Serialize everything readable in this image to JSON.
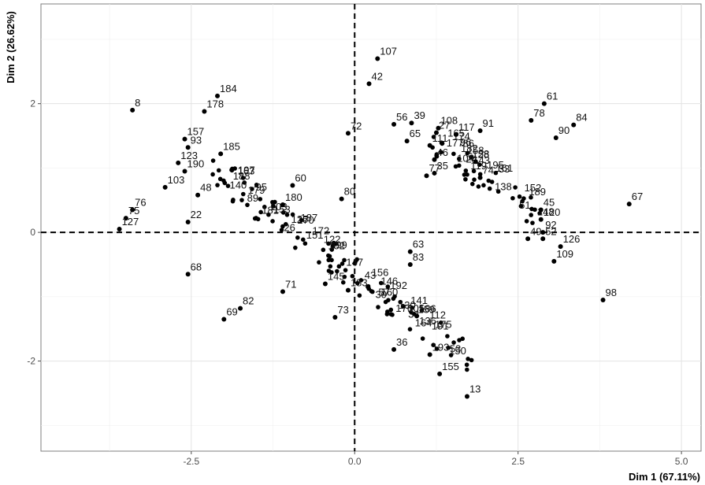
{
  "chart_data": {
    "type": "scatter",
    "xlabel": "Dim 1 (67.11%)",
    "ylabel": "Dim 2 (26.62%)",
    "xlim": [
      -4.8,
      5.3
    ],
    "ylim": [
      -3.4,
      3.55
    ],
    "x_ticks": [
      -2.5,
      0.0,
      2.5,
      5.0
    ],
    "x_tick_labels": [
      "-2.5",
      "0.0",
      "2.5",
      "5.0"
    ],
    "y_ticks": [
      -2,
      0,
      2
    ],
    "y_tick_labels": [
      "-2",
      "0",
      "2"
    ],
    "grid": true,
    "reference_lines": [
      "x=0 dashed",
      "y=0 dashed"
    ],
    "points": [
      {
        "id": "107",
        "x": 0.35,
        "y": 2.7
      },
      {
        "id": "42",
        "x": 0.22,
        "y": 2.31
      },
      {
        "id": "61",
        "x": 2.9,
        "y": 2.0
      },
      {
        "id": "84",
        "x": 3.35,
        "y": 1.67
      },
      {
        "id": "78",
        "x": 2.7,
        "y": 1.74
      },
      {
        "id": "90",
        "x": 3.08,
        "y": 1.47
      },
      {
        "id": "8",
        "x": -3.4,
        "y": 1.9
      },
      {
        "id": "184",
        "x": -2.1,
        "y": 2.12
      },
      {
        "id": "178",
        "x": -2.3,
        "y": 1.88
      },
      {
        "id": "72",
        "x": -0.1,
        "y": 1.54
      },
      {
        "id": "56",
        "x": 0.6,
        "y": 1.68
      },
      {
        "id": "39",
        "x": 0.87,
        "y": 1.7
      },
      {
        "id": "65",
        "x": 0.8,
        "y": 1.42
      },
      {
        "id": "108",
        "x": 1.28,
        "y": 1.62
      },
      {
        "id": "27",
        "x": 1.25,
        "y": 1.55
      },
      {
        "id": "117",
        "x": 1.55,
        "y": 1.52
      },
      {
        "id": "91",
        "x": 1.92,
        "y": 1.58
      },
      {
        "id": "111",
        "x": 1.15,
        "y": 1.35
      },
      {
        "id": "46",
        "x": 1.22,
        "y": 1.13
      },
      {
        "id": "77",
        "x": 1.1,
        "y": 0.88
      },
      {
        "id": "35",
        "x": 1.22,
        "y": 0.92
      },
      {
        "id": "58",
        "x": 1.85,
        "y": 1.1
      },
      {
        "id": "74",
        "x": 1.92,
        "y": 0.85
      },
      {
        "id": "157",
        "x": -2.6,
        "y": 1.45
      },
      {
        "id": "93",
        "x": -2.55,
        "y": 1.32
      },
      {
        "id": "185",
        "x": -2.05,
        "y": 1.22
      },
      {
        "id": "123",
        "x": -2.7,
        "y": 1.08
      },
      {
        "id": "190",
        "x": -2.6,
        "y": 0.95
      },
      {
        "id": "103",
        "x": -2.9,
        "y": 0.7
      },
      {
        "id": "60",
        "x": -0.95,
        "y": 0.73
      },
      {
        "id": "80",
        "x": -0.2,
        "y": 0.52
      },
      {
        "id": "76",
        "x": -3.4,
        "y": 0.35
      },
      {
        "id": "75",
        "x": -3.5,
        "y": 0.22
      },
      {
        "id": "127",
        "x": -3.6,
        "y": 0.05
      },
      {
        "id": "22",
        "x": -2.55,
        "y": 0.16
      },
      {
        "id": "48",
        "x": -2.4,
        "y": 0.58
      },
      {
        "id": "180",
        "x": -1.1,
        "y": 0.43
      },
      {
        "id": "67",
        "x": 4.2,
        "y": 0.44
      },
      {
        "id": "45",
        "x": 2.85,
        "y": 0.35
      },
      {
        "id": "120",
        "x": 2.85,
        "y": 0.2
      },
      {
        "id": "92",
        "x": 2.88,
        "y": 0.0
      },
      {
        "id": "49",
        "x": 2.65,
        "y": -0.1
      },
      {
        "id": "52",
        "x": 2.88,
        "y": -0.1
      },
      {
        "id": "126",
        "x": 3.15,
        "y": -0.22
      },
      {
        "id": "109",
        "x": 3.05,
        "y": -0.45
      },
      {
        "id": "63",
        "x": 0.85,
        "y": -0.3
      },
      {
        "id": "83",
        "x": 0.85,
        "y": -0.5
      },
      {
        "id": "68",
        "x": -2.55,
        "y": -0.65
      },
      {
        "id": "98",
        "x": 3.8,
        "y": -1.05
      },
      {
        "id": "82",
        "x": -1.75,
        "y": -1.18
      },
      {
        "id": "69",
        "x": -2.0,
        "y": -1.35
      },
      {
        "id": "73",
        "x": -0.3,
        "y": -1.32
      },
      {
        "id": "183",
        "x": -0.1,
        "y": -0.9
      },
      {
        "id": "186",
        "x": 0.95,
        "y": -1.3
      },
      {
        "id": "193",
        "x": 1.15,
        "y": -1.9
      },
      {
        "id": "155",
        "x": 1.3,
        "y": -2.2
      },
      {
        "id": "13",
        "x": 1.72,
        "y": -2.55
      },
      {
        "id": "71",
        "x": -1.1,
        "y": -0.92
      },
      {
        "id": "36",
        "x": 0.6,
        "y": -1.82
      },
      {
        "id": "145",
        "x": -0.45,
        "y": -0.8
      }
    ],
    "cluster_labels": [
      "102",
      "103",
      "104",
      "105",
      "112",
      "119",
      "122",
      "125",
      "128",
      "130",
      "136",
      "138",
      "140",
      "141",
      "143",
      "146",
      "147",
      "148",
      "150",
      "151",
      "152",
      "153",
      "156",
      "158",
      "159",
      "160",
      "161",
      "163",
      "164",
      "165",
      "170",
      "172",
      "174",
      "175",
      "176",
      "177",
      "179",
      "181",
      "182",
      "187",
      "188",
      "189",
      "191",
      "192",
      "195",
      "197",
      "199",
      "24",
      "26",
      "30",
      "33",
      "34",
      "43",
      "51",
      "53",
      "57",
      "86",
      "89",
      "95",
      "96"
    ]
  }
}
